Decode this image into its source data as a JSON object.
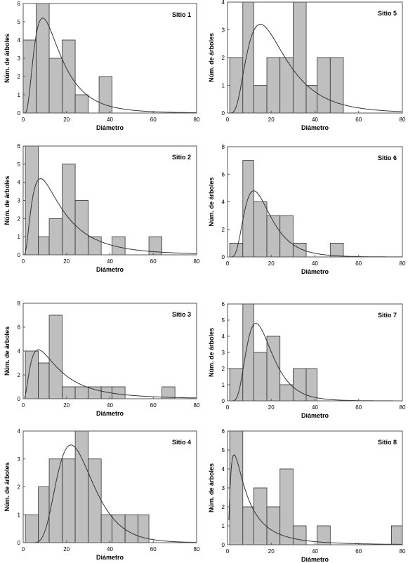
{
  "figure": {
    "xlabel": "Diámetro",
    "ylabel": "Núm. de árboles"
  },
  "chart_data": [
    {
      "type": "bar",
      "title": "Sitio 1",
      "xlabel": "Diámetro",
      "ylabel": "Núm. de árboles",
      "xlim": [
        0,
        80
      ],
      "ylim": [
        0,
        6
      ],
      "yticks": [
        0,
        1,
        2,
        3,
        4,
        5,
        6
      ],
      "xticks": [
        0,
        20,
        40,
        60,
        80
      ],
      "grid": false,
      "bins": [
        [
          0,
          6,
          4
        ],
        [
          6,
          12,
          6
        ],
        [
          12,
          18,
          3
        ],
        [
          18,
          24,
          4
        ],
        [
          24,
          30,
          1
        ],
        [
          35,
          41,
          2
        ]
      ],
      "curve": {
        "mode": 9,
        "peak": 5.2,
        "sigma": 0.65
      }
    },
    {
      "type": "bar",
      "title": "Sitio 2",
      "xlabel": "Diámetro",
      "ylabel": "Núm. de árboles",
      "xlim": [
        0,
        80
      ],
      "ylim": [
        0,
        6
      ],
      "yticks": [
        0,
        1,
        2,
        3,
        4,
        5,
        6
      ],
      "xticks": [
        0,
        20,
        40,
        60,
        80
      ],
      "grid": false,
      "bins": [
        [
          1,
          7,
          6
        ],
        [
          7,
          12,
          1
        ],
        [
          12,
          18,
          2
        ],
        [
          18,
          24,
          5
        ],
        [
          24,
          30,
          3
        ],
        [
          30,
          36,
          1
        ],
        [
          41,
          47,
          1
        ],
        [
          58,
          64,
          1
        ]
      ],
      "curve": {
        "mode": 8,
        "peak": 4.2,
        "sigma": 0.8
      }
    },
    {
      "type": "bar",
      "title": "Sitio 3",
      "xlabel": "Diámetro",
      "ylabel": "Núm. de árboles",
      "xlim": [
        0,
        80
      ],
      "ylim": [
        0,
        8
      ],
      "yticks": [
        0,
        2,
        4,
        6,
        8
      ],
      "xticks": [
        0,
        20,
        40,
        60,
        80
      ],
      "grid": false,
      "bins": [
        [
          1,
          7,
          4
        ],
        [
          7,
          12,
          3
        ],
        [
          12,
          18,
          7
        ],
        [
          18,
          24,
          1
        ],
        [
          24,
          30,
          1
        ],
        [
          30,
          36,
          1
        ],
        [
          36,
          41,
          1
        ],
        [
          41,
          47,
          1
        ],
        [
          64,
          70,
          1
        ]
      ],
      "curve": {
        "mode": 7,
        "peak": 4.1,
        "sigma": 0.85
      }
    },
    {
      "type": "bar",
      "title": "Sitio 4",
      "xlabel": "Diámetro",
      "ylabel": "Núm. de árboles",
      "xlim": [
        0,
        80
      ],
      "ylim": [
        0,
        4
      ],
      "yticks": [
        0,
        1,
        2,
        3,
        4
      ],
      "xticks": [
        0,
        20,
        40,
        60,
        80
      ],
      "grid": false,
      "bins": [
        [
          1,
          7,
          1
        ],
        [
          7,
          12,
          2
        ],
        [
          12,
          18,
          3
        ],
        [
          18,
          24,
          3
        ],
        [
          24,
          30,
          4
        ],
        [
          30,
          36,
          3
        ],
        [
          36,
          41,
          1
        ],
        [
          41,
          47,
          1
        ],
        [
          47,
          53,
          1
        ],
        [
          53,
          58,
          1
        ]
      ],
      "curve": {
        "mode": 22,
        "peak": 3.5,
        "sigma": 0.38
      }
    },
    {
      "type": "bar",
      "title": "Sitio 5",
      "xlabel": "Diámetro",
      "ylabel": "Núm. de árboles",
      "xlim": [
        0,
        80
      ],
      "ylim": [
        0,
        4
      ],
      "yticks": [
        0,
        1,
        2,
        3,
        4
      ],
      "xticks": [
        0,
        20,
        40,
        60,
        80
      ],
      "grid": false,
      "bins": [
        [
          1,
          7,
          2
        ],
        [
          7,
          12,
          4
        ],
        [
          12,
          18,
          1
        ],
        [
          18,
          24,
          2
        ],
        [
          24,
          30,
          2
        ],
        [
          30,
          36,
          4
        ],
        [
          36,
          41,
          1
        ],
        [
          41,
          47,
          2
        ],
        [
          47,
          53,
          2
        ]
      ],
      "curve": {
        "mode": 15,
        "peak": 3.2,
        "sigma": 0.58
      }
    },
    {
      "type": "bar",
      "title": "Sitio 6",
      "xlabel": "Diámetro",
      "ylabel": "Núm. de árboles",
      "xlim": [
        0,
        80
      ],
      "ylim": [
        0,
        8
      ],
      "yticks": [
        0,
        2,
        4,
        6,
        8
      ],
      "xticks": [
        0,
        20,
        40,
        60,
        80
      ],
      "grid": false,
      "bins": [
        [
          1,
          7,
          1
        ],
        [
          7,
          12,
          7
        ],
        [
          12,
          18,
          4
        ],
        [
          18,
          24,
          3
        ],
        [
          24,
          30,
          3
        ],
        [
          30,
          36,
          1
        ],
        [
          47,
          53,
          1
        ]
      ],
      "curve": {
        "mode": 12,
        "peak": 4.8,
        "sigma": 0.5
      }
    },
    {
      "type": "bar",
      "title": "Sitio 7",
      "xlabel": "Diámetro",
      "ylabel": "Núm. de árboles",
      "xlim": [
        0,
        80
      ],
      "ylim": [
        0,
        6
      ],
      "yticks": [
        0,
        1,
        2,
        3,
        4,
        5,
        6
      ],
      "xticks": [
        0,
        20,
        40,
        60,
        80
      ],
      "grid": false,
      "bins": [
        [
          1,
          7,
          2
        ],
        [
          7,
          12,
          6
        ],
        [
          12,
          18,
          3
        ],
        [
          18,
          24,
          4
        ],
        [
          24,
          30,
          1
        ],
        [
          30,
          36,
          2
        ],
        [
          36,
          41,
          2
        ]
      ],
      "curve": {
        "mode": 13,
        "peak": 4.8,
        "sigma": 0.45
      }
    },
    {
      "type": "bar",
      "title": "Sitio 8",
      "xlabel": "Diámetro",
      "ylabel": "Núm. de árboles",
      "xlim": [
        0,
        80
      ],
      "ylim": [
        0,
        6
      ],
      "yticks": [
        0,
        1,
        2,
        3,
        4,
        5,
        6
      ],
      "xticks": [
        0,
        20,
        40,
        60,
        80
      ],
      "grid": false,
      "bins": [
        [
          1,
          7,
          6
        ],
        [
          7,
          12,
          2
        ],
        [
          12,
          18,
          3
        ],
        [
          18,
          24,
          2
        ],
        [
          24,
          30,
          4
        ],
        [
          30,
          36,
          1
        ],
        [
          41,
          47,
          1
        ],
        [
          75,
          80,
          1
        ]
      ],
      "curve": {
        "mode": 3,
        "peak": 4.75,
        "sigma": 1.0
      }
    }
  ]
}
